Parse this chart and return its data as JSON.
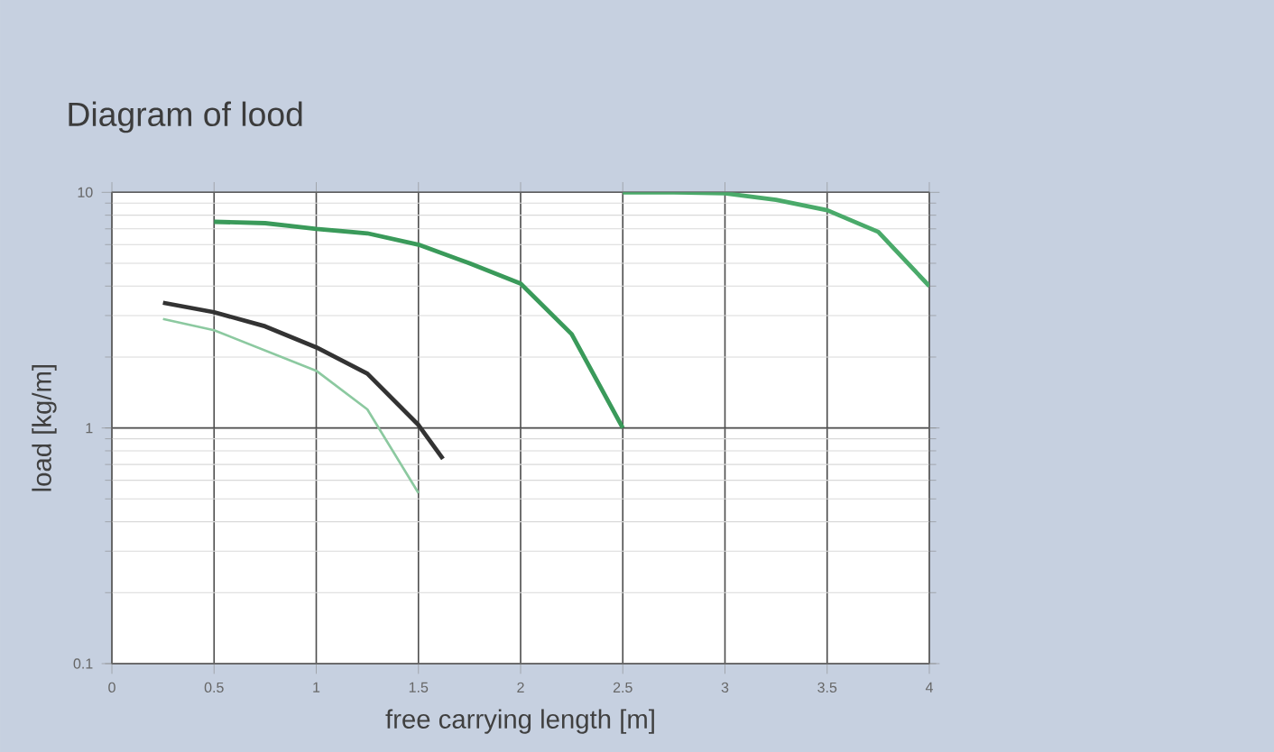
{
  "chart_data": {
    "type": "line",
    "title": "Diagram of lood",
    "xlabel": "free carrying length [m]",
    "ylabel": "load [kg/m]",
    "log": "y",
    "xlim": [
      0,
      4
    ],
    "xticks": [
      0,
      0.5,
      1,
      1.5,
      2,
      2.5,
      3,
      3.5,
      4
    ],
    "ylim": [
      0.1,
      10
    ],
    "yticks": [
      0.1,
      1,
      10
    ],
    "grid": true,
    "line_style": "solid",
    "series": [
      {
        "color": "#8cc9a0",
        "x": [
          0.25,
          0.5,
          1.0,
          1.25,
          1.5
        ],
        "values": [
          2.9,
          2.6,
          1.75,
          1.2,
          0.53
        ]
      },
      {
        "color": "#333333",
        "x": [
          0.25,
          0.5,
          0.75,
          1.0,
          1.25,
          1.5,
          1.62
        ],
        "values": [
          3.4,
          3.1,
          2.7,
          2.2,
          1.7,
          1.03,
          0.74
        ]
      },
      {
        "color": "#3a9a5a",
        "x": [
          0.5,
          0.75,
          1.0,
          1.25,
          1.5,
          1.75,
          2.0,
          2.25,
          2.5
        ],
        "values": [
          7.5,
          7.4,
          7.0,
          6.7,
          6.0,
          5.0,
          4.1,
          2.5,
          1.0
        ]
      },
      {
        "color": "#4aaa6a",
        "x": [
          2.5,
          2.75,
          3.0,
          3.25,
          3.5,
          3.75,
          4.0
        ],
        "values": [
          10,
          10,
          9.9,
          9.3,
          8.4,
          6.8,
          4.0
        ]
      }
    ]
  }
}
